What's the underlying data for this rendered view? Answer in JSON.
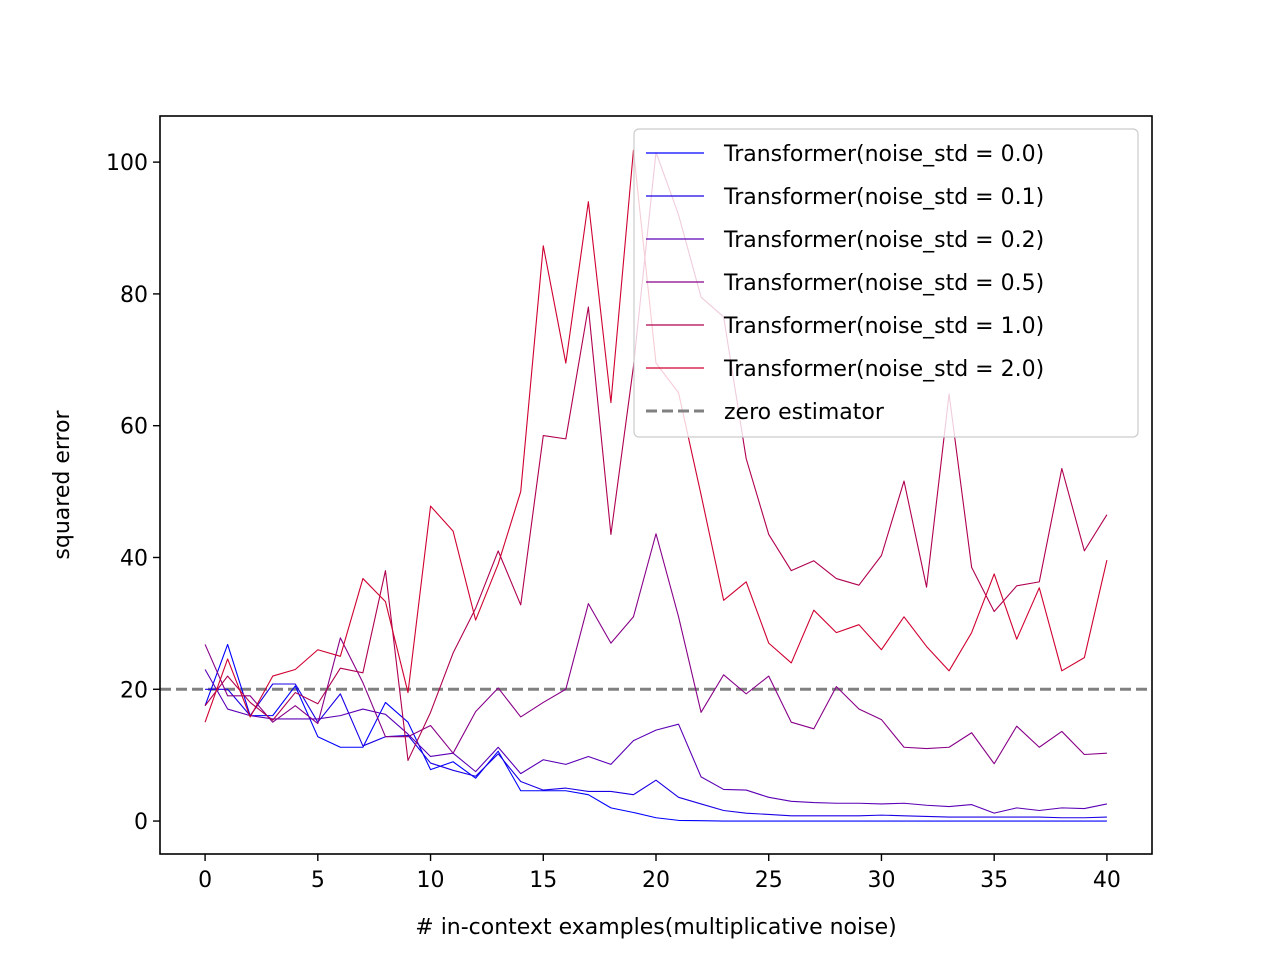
{
  "chart_data": {
    "type": "line",
    "title": "",
    "xlabel": "# in-context examples(multiplicative noise)",
    "ylabel": "squared error",
    "xlim": [
      -2,
      42
    ],
    "ylim": [
      -5,
      107
    ],
    "xticks": [
      0,
      5,
      10,
      15,
      20,
      25,
      30,
      35,
      40
    ],
    "yticks": [
      0,
      20,
      40,
      60,
      80,
      100
    ],
    "grid": false,
    "legend_position": "top-right",
    "x": [
      0,
      1,
      2,
      3,
      4,
      5,
      6,
      7,
      8,
      9,
      10,
      11,
      12,
      13,
      14,
      15,
      16,
      17,
      18,
      19,
      20,
      21,
      22,
      23,
      24,
      25,
      26,
      27,
      28,
      29,
      30,
      31,
      32,
      33,
      34,
      35,
      36,
      37,
      38,
      39,
      40
    ],
    "series": [
      {
        "name": "Transformer(noise_std = 0.0)",
        "color": "#0000ff",
        "values": [
          17.5,
          26.8,
          16.0,
          16.0,
          20.5,
          12.8,
          11.2,
          11.2,
          18.0,
          15.0,
          7.8,
          9.0,
          6.5,
          10.6,
          4.6,
          4.6,
          4.6,
          4.0,
          2.0,
          1.3,
          0.5,
          0.1,
          0.05,
          0.0,
          0.0,
          0.0,
          0.0,
          0.0,
          0.0,
          0.0,
          0.0,
          0.0,
          0.0,
          0.0,
          0.0,
          0.0,
          0.0,
          0.0,
          0.0,
          0.0,
          0.0
        ]
      },
      {
        "name": "Transformer(noise_std = 0.1)",
        "color": "#1a00e5",
        "values": [
          20.0,
          20.0,
          16.0,
          20.8,
          20.8,
          15.0,
          19.3,
          11.4,
          12.8,
          13.0,
          8.8,
          7.7,
          6.8,
          10.2,
          6.0,
          4.7,
          5.0,
          4.5,
          4.5,
          4.0,
          6.2,
          3.6,
          2.6,
          1.6,
          1.2,
          1.0,
          0.8,
          0.8,
          0.8,
          0.8,
          0.9,
          0.8,
          0.7,
          0.6,
          0.6,
          0.6,
          0.6,
          0.6,
          0.5,
          0.5,
          0.6
        ]
      },
      {
        "name": "Transformer(noise_std = 0.2)",
        "color": "#5a00b5",
        "values": [
          23.0,
          17.0,
          16.0,
          15.5,
          15.5,
          15.5,
          16.0,
          17.0,
          16.2,
          13.2,
          9.8,
          10.3,
          7.5,
          11.2,
          7.2,
          9.3,
          8.6,
          9.8,
          8.6,
          12.2,
          13.8,
          14.7,
          6.7,
          4.8,
          4.7,
          3.6,
          3.0,
          2.8,
          2.7,
          2.7,
          2.6,
          2.7,
          2.4,
          2.2,
          2.5,
          1.2,
          2.0,
          1.6,
          2.0,
          1.9,
          2.6
        ]
      },
      {
        "name": "Transformer(noise_std = 0.5)",
        "color": "#880088",
        "values": [
          26.8,
          19.0,
          19.0,
          15.0,
          17.5,
          14.8,
          27.8,
          21.0,
          12.8,
          12.8,
          14.5,
          10.3,
          16.6,
          20.2,
          15.8,
          18.0,
          20.0,
          33.0,
          27.0,
          31.0,
          43.6,
          31.0,
          16.5,
          22.2,
          19.3,
          22.0,
          15.0,
          14.0,
          20.4,
          17.0,
          15.4,
          11.2,
          11.0,
          11.2,
          13.4,
          8.7,
          14.4,
          11.2,
          13.6,
          10.1,
          10.3
        ]
      },
      {
        "name": "Transformer(noise_std = 1.0)",
        "color": "#b00050",
        "values": [
          17.5,
          22.0,
          18.0,
          15.3,
          19.5,
          17.8,
          23.2,
          22.5,
          38.0,
          9.2,
          16.5,
          25.5,
          32.3,
          41.0,
          32.8,
          58.5,
          58.0,
          78.0,
          43.5,
          69.0,
          101.5,
          92.0,
          79.5,
          76.5,
          55.0,
          43.5,
          38.0,
          39.5,
          36.8,
          35.8,
          40.3,
          51.6,
          35.5,
          64.8,
          38.5,
          31.8,
          35.7,
          36.3,
          53.5,
          41.0,
          46.5
        ]
      },
      {
        "name": "Transformer(noise_std = 2.0)",
        "color": "#d00030",
        "values": [
          15.0,
          24.6,
          15.8,
          22.0,
          23.0,
          26.0,
          25.0,
          36.8,
          33.3,
          19.5,
          47.8,
          44.0,
          30.5,
          39.0,
          50.0,
          87.3,
          69.5,
          94.0,
          63.5,
          101.8,
          69.5,
          65.0,
          49.5,
          33.5,
          36.3,
          27.0,
          24.0,
          32.0,
          28.6,
          29.8,
          26.0,
          31.0,
          26.5,
          22.8,
          28.6,
          37.5,
          27.6,
          35.4,
          22.8,
          24.8,
          39.6
        ]
      }
    ],
    "reference_line": {
      "name": "zero estimator",
      "y": 20,
      "color": "#808080",
      "style": "dashed"
    }
  }
}
